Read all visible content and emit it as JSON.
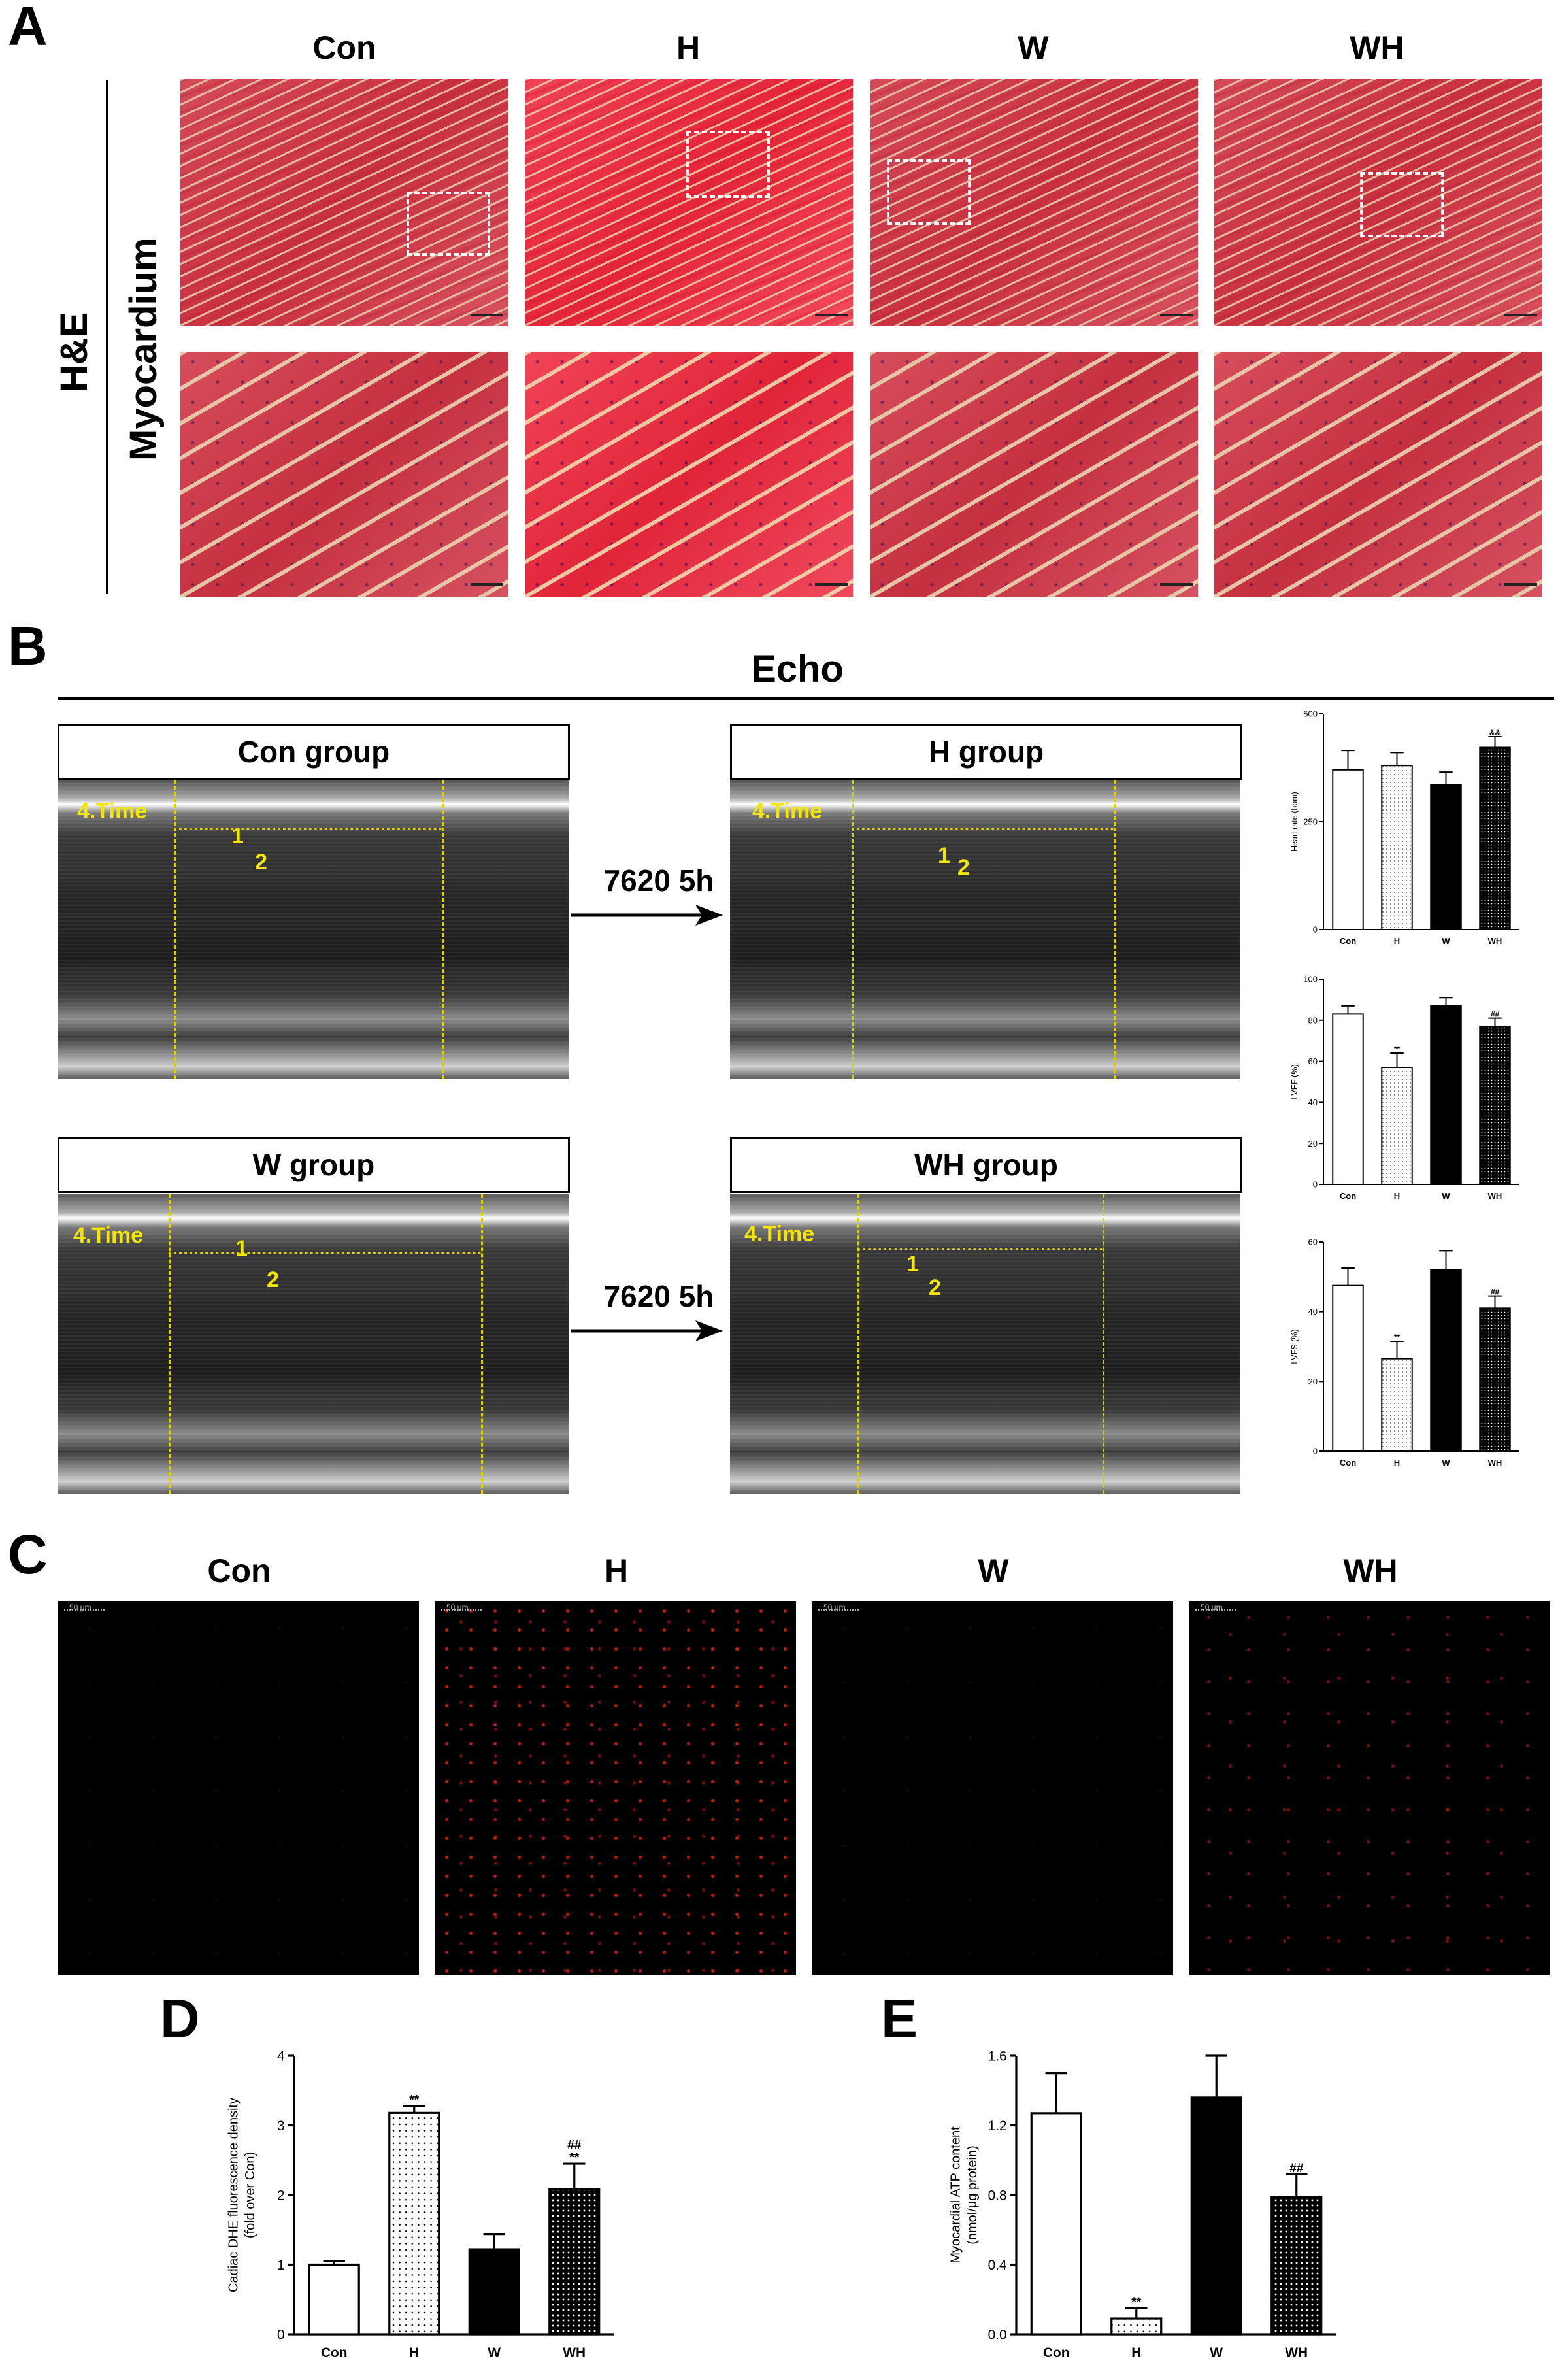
{
  "panel_letters": {
    "A": "A",
    "B": "B",
    "C": "C",
    "D": "D",
    "E": "E"
  },
  "panelA": {
    "groups": [
      "Con",
      "H",
      "W",
      "WH"
    ],
    "stain": "H&E",
    "tissue": "Myocardium"
  },
  "panelB": {
    "title": "Echo",
    "boxes": [
      "Con group",
      "H group",
      "W group",
      "WH group"
    ],
    "arrow_label": "7620 5h",
    "overlay": {
      "time": "4.Time",
      "m1": "1",
      "m2": "2"
    }
  },
  "panelC": {
    "groups": [
      "Con",
      "H",
      "W",
      "WH"
    ],
    "scale_text": "50 μm"
  },
  "chart_data": [
    {
      "id": "heart_rate",
      "type": "bar",
      "categories": [
        "Con",
        "H",
        "W",
        "WH"
      ],
      "values": [
        370,
        380,
        335,
        422
      ],
      "errors": [
        45,
        30,
        30,
        25
      ],
      "ylabel": "Heart rate (bpm)",
      "ylim": [
        0,
        500
      ],
      "yticks": [
        "0",
        "250",
        "500"
      ],
      "annotations": [
        "",
        "",
        "",
        "&&"
      ],
      "fills": [
        "white",
        "dotted",
        "black",
        "dense-dotted"
      ]
    },
    {
      "id": "lvef",
      "type": "bar",
      "categories": [
        "Con",
        "H",
        "W",
        "WH"
      ],
      "values": [
        83,
        57,
        87,
        77
      ],
      "errors": [
        4,
        7,
        4,
        4
      ],
      "ylabel": "LVEF (%)",
      "ylim": [
        0,
        100
      ],
      "yticks": [
        "0",
        "20",
        "40",
        "60",
        "80",
        "100"
      ],
      "annotations": [
        "",
        "**",
        "",
        "##"
      ],
      "fills": [
        "white",
        "dotted",
        "black",
        "dense-dotted"
      ]
    },
    {
      "id": "lvfs",
      "type": "bar",
      "categories": [
        "Con",
        "H",
        "W",
        "WH"
      ],
      "values": [
        47.5,
        26.5,
        52,
        41
      ],
      "errors": [
        5,
        5,
        5.5,
        3.5
      ],
      "ylabel": "LVFS (%)",
      "ylim": [
        0,
        60
      ],
      "yticks": [
        "0",
        "20",
        "40",
        "60"
      ],
      "annotations": [
        "",
        "**",
        "",
        "##"
      ],
      "fills": [
        "white",
        "dotted",
        "black",
        "dense-dotted"
      ]
    },
    {
      "id": "dhe",
      "type": "bar",
      "categories": [
        "Con",
        "H",
        "W",
        "WH"
      ],
      "values": [
        1.0,
        3.18,
        1.22,
        2.08
      ],
      "errors": [
        0.05,
        0.1,
        0.22,
        0.37
      ],
      "ylabel": "Cadiac DHE fluorescence density\n(fold over Con)",
      "ylim": [
        0,
        4
      ],
      "yticks": [
        "0",
        "1",
        "2",
        "3",
        "4"
      ],
      "annotations": [
        "",
        "**",
        "",
        "##\n**"
      ],
      "fills": [
        "white",
        "dotted",
        "black",
        "dense-dotted"
      ]
    },
    {
      "id": "atp",
      "type": "bar",
      "categories": [
        "Con",
        "H",
        "W",
        "WH"
      ],
      "values": [
        1.27,
        0.09,
        1.36,
        0.79
      ],
      "errors": [
        0.23,
        0.06,
        0.24,
        0.13
      ],
      "ylabel": "Myocardial ATP content\n(nmol/μg protein)",
      "ylim": [
        0,
        1.6
      ],
      "yticks": [
        "0.0",
        "0.4",
        "0.8",
        "1.2",
        "1.6"
      ],
      "annotations": [
        "",
        "**",
        "",
        "##"
      ],
      "fills": [
        "white",
        "dotted",
        "black",
        "dense-dotted"
      ]
    }
  ]
}
